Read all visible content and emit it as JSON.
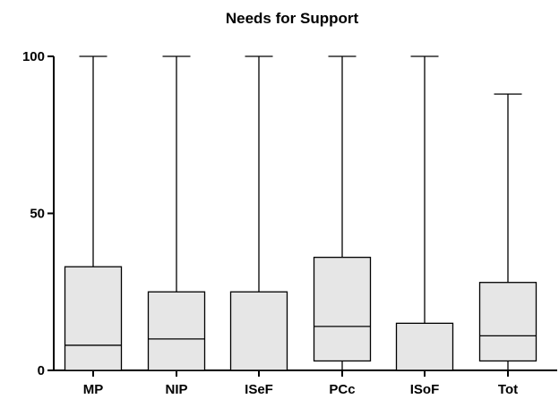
{
  "chart_data": {
    "type": "boxplot",
    "title": "Needs for Support",
    "xlabel": "",
    "ylabel": "",
    "ylim": [
      0,
      100
    ],
    "yticks": [
      0,
      50,
      100
    ],
    "categories": [
      "MP",
      "NIP",
      "ISeF",
      "PCc",
      "ISoF",
      "Tot"
    ],
    "boxes": [
      {
        "min": 0,
        "q1": 0,
        "median": 8,
        "q3": 33,
        "max": 100
      },
      {
        "min": 0,
        "q1": 0,
        "median": 10,
        "q3": 25,
        "max": 100
      },
      {
        "min": 0,
        "q1": 0,
        "median": 0,
        "q3": 25,
        "max": 100
      },
      {
        "min": 0,
        "q1": 3,
        "median": 14,
        "q3": 36,
        "max": 100
      },
      {
        "min": 0,
        "q1": 0,
        "median": 0,
        "q3": 15,
        "max": 100
      },
      {
        "min": 0,
        "q1": 3,
        "median": 11,
        "q3": 28,
        "max": 88
      }
    ],
    "grid": false,
    "legend": "none",
    "colors": {
      "box_fill": "#e6e6e6",
      "stroke": "#000000"
    }
  }
}
